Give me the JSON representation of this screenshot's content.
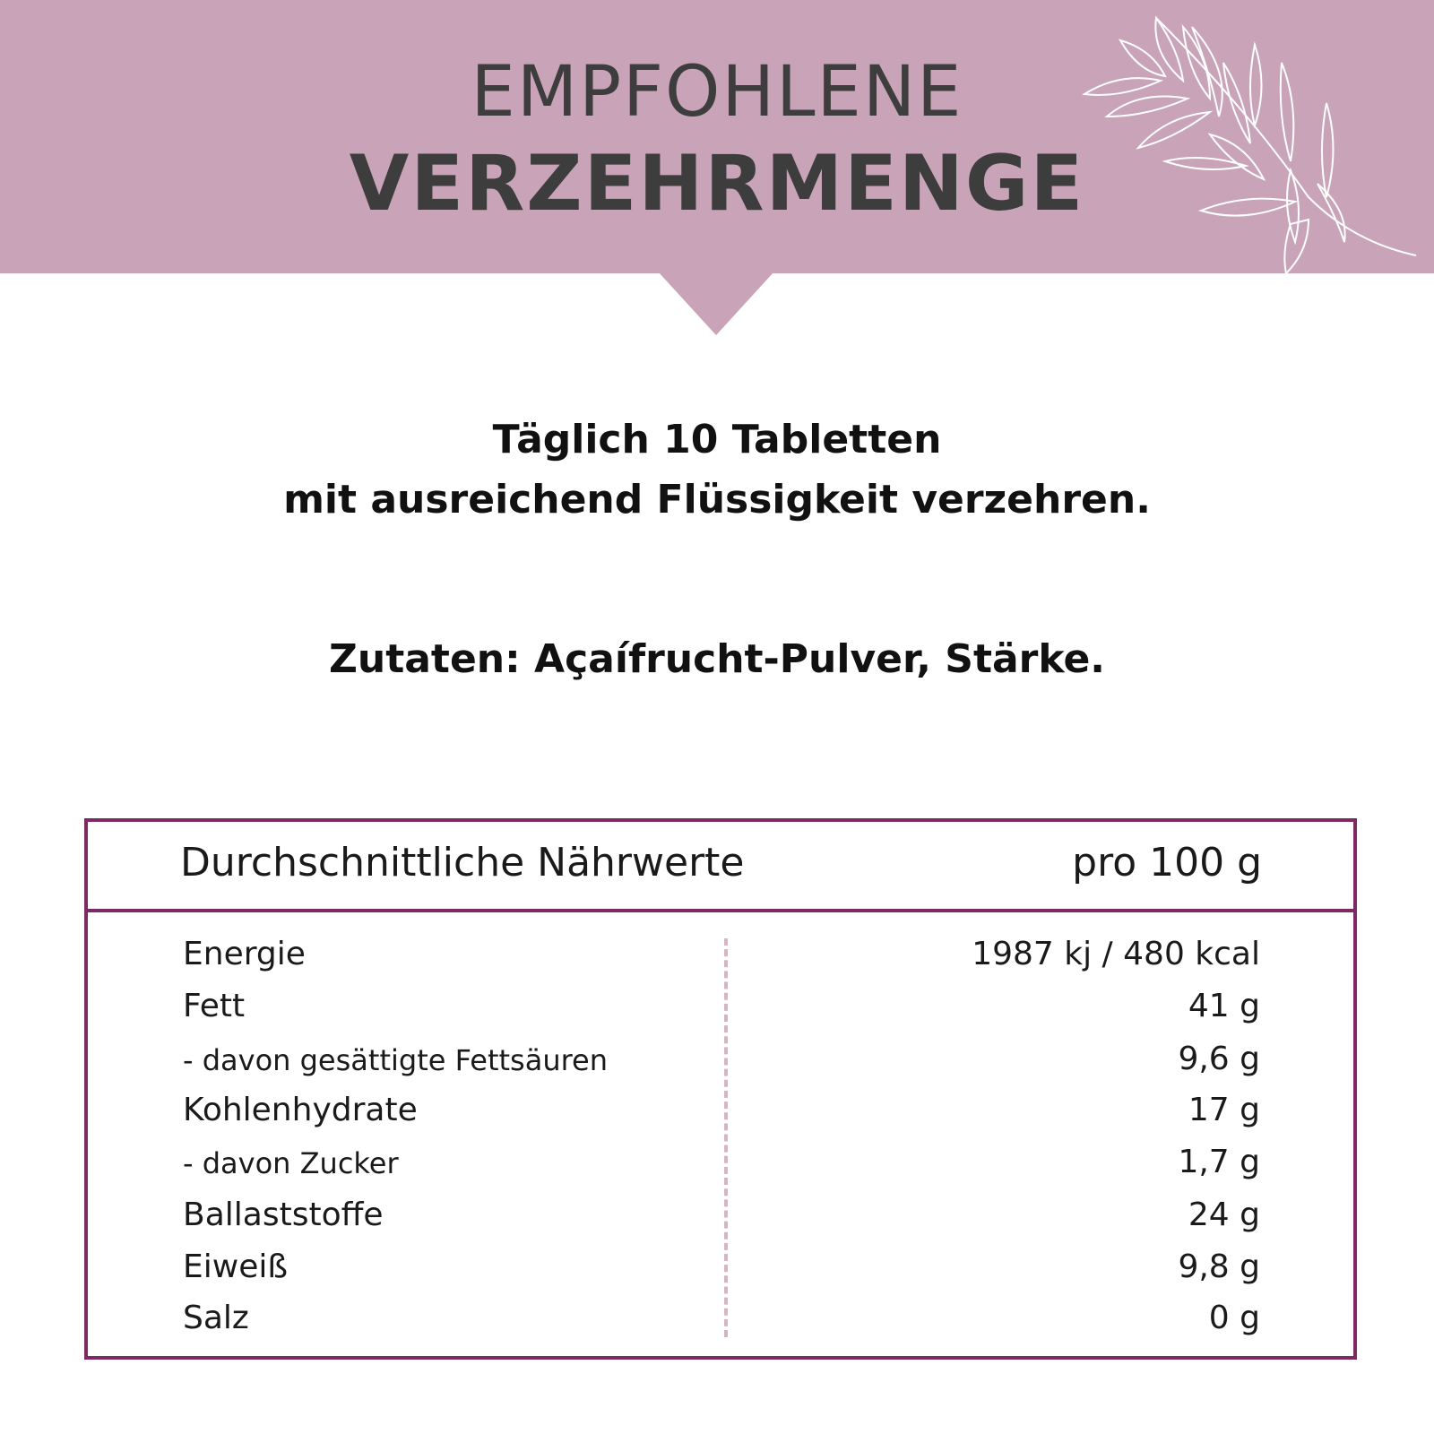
{
  "header": {
    "title_line1": "EMPFOHLENE",
    "title_line2": "VERZEHRMENGE",
    "background_color": "#c9a4b8",
    "decoration": "leaf-branch-icon"
  },
  "dosage": {
    "line1": "Täglich 10 Tabletten",
    "line2": "mit ausreichend Flüssigkeit verzehren."
  },
  "ingredients": "Zutaten: Açaífrucht-Pulver, Stärke.",
  "nutrition": {
    "border_color": "#7b2b62",
    "header_label": "Durchschnittliche Nährwerte",
    "header_unit": "pro 100 g",
    "rows": [
      {
        "name": "Energie",
        "value": "1987 kj / 480 kcal"
      },
      {
        "name": "Fett",
        "value": "41 g"
      },
      {
        "name": "- davon gesättigte Fettsäuren",
        "value": "9,6 g"
      },
      {
        "name": "Kohlenhydrate",
        "value": "17 g"
      },
      {
        "name": "- davon Zucker",
        "value": "1,7 g"
      },
      {
        "name": "Ballaststoffe",
        "value": "24 g"
      },
      {
        "name": "Eiweiß",
        "value": "9,8 g"
      },
      {
        "name": "Salz",
        "value": "0 g"
      }
    ]
  }
}
